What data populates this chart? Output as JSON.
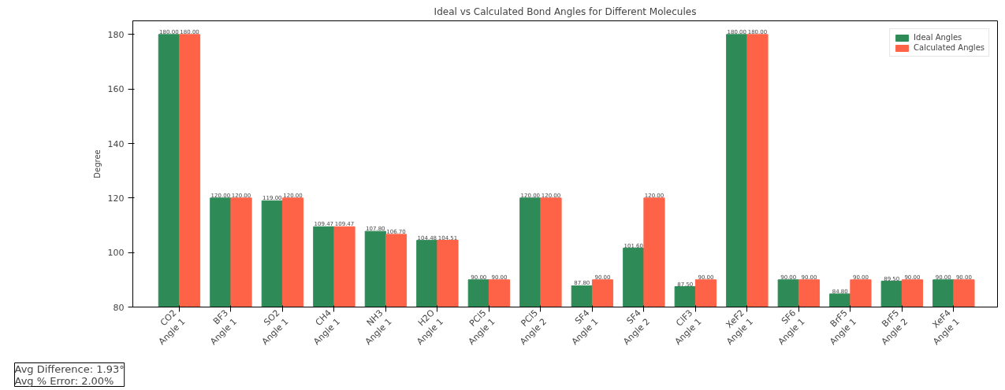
{
  "chart_data": {
    "type": "bar",
    "title": "Ideal vs Calculated Bond Angles for Different Molecules",
    "ylabel": "Degree",
    "categories": [
      "CO2\nAngle 1",
      "BF3\nAngle 1",
      "SO2\nAngle 1",
      "CH4\nAngle 1",
      "NH3\nAngle 1",
      "H2O\nAngle 1",
      "PCl5\nAngle 1",
      "PCl5\nAngle 2",
      "SF4\nAngle 1",
      "SF4\nAngle 2",
      "ClF3\nAngle 1",
      "XeF2\nAngle 1",
      "SF6\nAngle 1",
      "BrF5\nAngle 1",
      "BrF5\nAngle 2",
      "XeF4\nAngle 1"
    ],
    "series": [
      {
        "name": "Ideal Angles",
        "color": "#2e8b57",
        "values": [
          180,
          120,
          119,
          109.47,
          107.8,
          104.48,
          90,
          120,
          87.8,
          101.6,
          87.5,
          180,
          90,
          84.8,
          89.5,
          90
        ],
        "value_labels": [
          "180.00",
          "120.00",
          "119.00",
          "109.47",
          "107.80",
          "104.48",
          "90.00",
          "120.00",
          "87.80",
          "101.60",
          "87.50",
          "180.00",
          "90.00",
          "84.80",
          "89.50",
          "90.00"
        ]
      },
      {
        "name": "Calculated Angles",
        "color": "#ff6347",
        "values": [
          180,
          120,
          120,
          109.47,
          106.7,
          104.51,
          90,
          120,
          90,
          120,
          90,
          180,
          90,
          90,
          90,
          90
        ],
        "value_labels": [
          "180.00",
          "120.00",
          "120.00",
          "109.47",
          "106.70",
          "104.51",
          "90.00",
          "120.00",
          "90.00",
          "120.00",
          "90.00",
          "180.00",
          "90.00",
          "90.00",
          "90.00",
          "90.00"
        ]
      }
    ],
    "ylim": [
      80,
      185
    ],
    "yticks": [
      80,
      100,
      120,
      140,
      160,
      180
    ],
    "grid": false,
    "legend": "top right",
    "annotations": [
      "Avg Difference: 1.93°\nAvg % Error: 2.00%"
    ]
  }
}
